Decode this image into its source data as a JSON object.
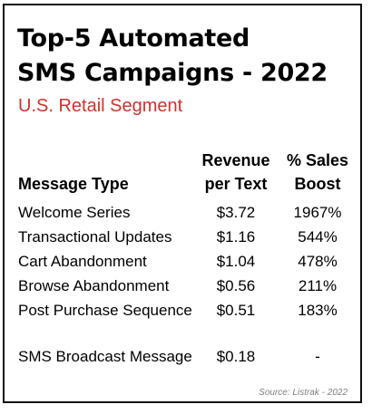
{
  "title_line1": "Top-5 Automated",
  "title_line2": "SMS Campaigns - 2022",
  "subtitle": "U.S. Retail Segment",
  "headers": {
    "type": "Message Type",
    "revenue_line1": "Revenue",
    "revenue_line2": "per Text",
    "boost_line1": "% Sales",
    "boost_line2": "Boost"
  },
  "rows": [
    {
      "name": "Welcome Series",
      "revenue": "$3.72",
      "boost": "1967%"
    },
    {
      "name": "Transactional Updates",
      "revenue": "$1.16",
      "boost": "544%"
    },
    {
      "name": "Cart Abandonment",
      "revenue": "$1.04",
      "boost": "478%"
    },
    {
      "name": "Browse Abandonment",
      "revenue": "$0.56",
      "boost": "211%"
    },
    {
      "name": "Post Purchase Sequence",
      "revenue": "$0.51",
      "boost": "183%"
    },
    {
      "name": "SMS Broadcast Message",
      "revenue": "$0.18",
      "boost": "-"
    }
  ],
  "source": "Source: Listrak - 2022",
  "colors": {
    "subtitle": "#d0312d",
    "border": "#111111",
    "source": "#7f7f7f"
  }
}
